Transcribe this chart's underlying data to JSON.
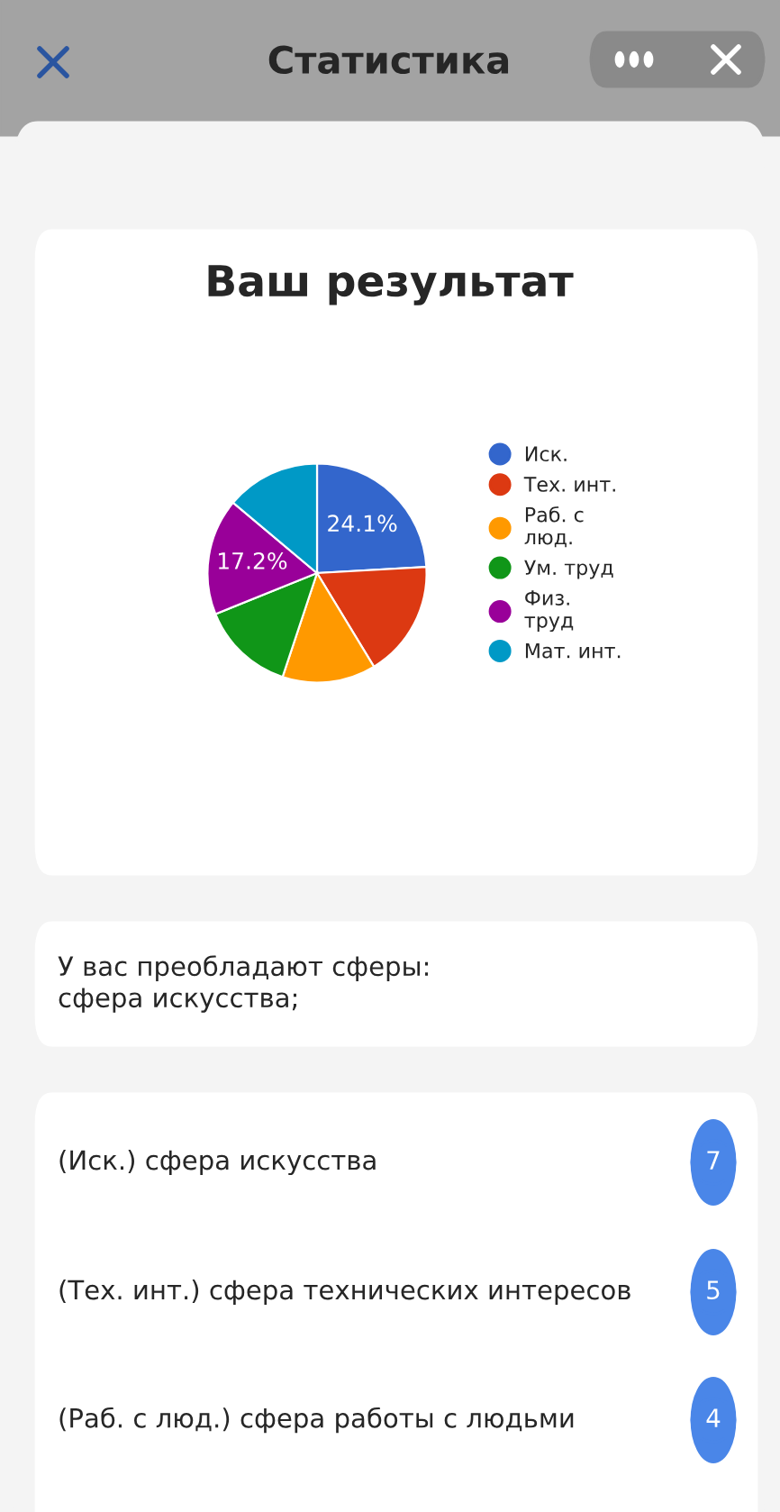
{
  "chart_data": {
    "type": "pie",
    "title": "Ваш результат",
    "categories": [
      "Иск.",
      "Тех. инт.",
      "Раб. с\nлюд.",
      "Ум. труд",
      "Физ.\nтруд",
      "Мат. инт."
    ],
    "values": [
      24.1,
      17.2,
      13.8,
      13.8,
      17.2,
      13.9
    ],
    "colors": [
      "#3366cc",
      "#dc3912",
      "#ff9900",
      "#109618",
      "#990099",
      "#0099c6"
    ],
    "value_labels": [
      "24.1%",
      null,
      null,
      null,
      "17.2%",
      null
    ],
    "legend": "right",
    "annotations": [
      "Статистика",
      "У вас преобладают сферы:\nсфера искусства;",
      "(Иск.) сфера искусства",
      "7",
      "(Тех. инт.) сфера технических интересов",
      "5",
      "(Раб. с люд.) сфера работы с людьми",
      "4"
    ]
  }
}
